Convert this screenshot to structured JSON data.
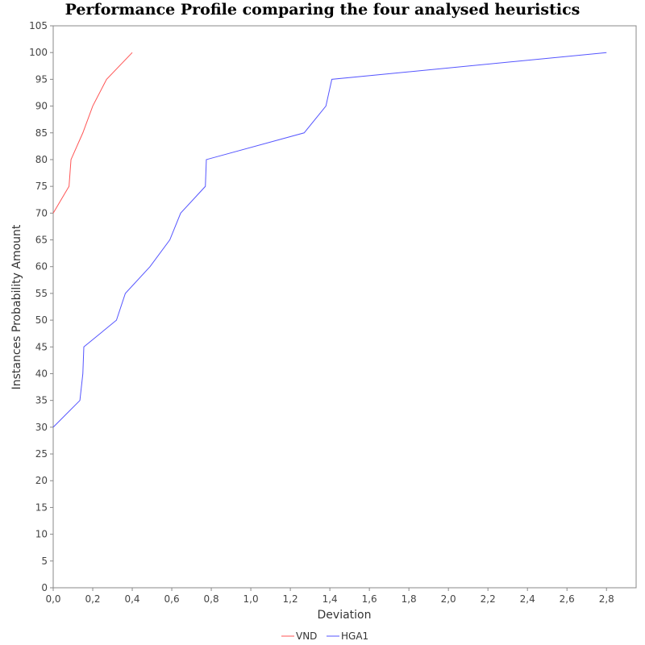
{
  "chart_data": {
    "type": "line",
    "title": "Performance Profile comparing the four analysed heuristics",
    "xlabel": "Deviation",
    "ylabel": "Instances Probability Amount",
    "xlim": [
      0.0,
      2.95
    ],
    "ylim": [
      0,
      105
    ],
    "xticks": [
      0.0,
      0.2,
      0.4,
      0.6,
      0.8,
      1.0,
      1.2,
      1.4,
      1.6,
      1.8,
      2.0,
      2.2,
      2.4,
      2.6,
      2.8
    ],
    "xtick_labels": [
      "0,0",
      "0,2",
      "0,4",
      "0,6",
      "0,8",
      "1,0",
      "1,2",
      "1,4",
      "1,6",
      "1,8",
      "2,0",
      "2,2",
      "2,4",
      "2,6",
      "2,8"
    ],
    "yticks": [
      0,
      5,
      10,
      15,
      20,
      25,
      30,
      35,
      40,
      45,
      50,
      55,
      60,
      65,
      70,
      75,
      80,
      85,
      90,
      95,
      100,
      105
    ],
    "ytick_labels": [
      "0",
      "5",
      "10",
      "15",
      "20",
      "25",
      "30",
      "35",
      "40",
      "45",
      "50",
      "55",
      "60",
      "65",
      "70",
      "75",
      "80",
      "85",
      "90",
      "95",
      "100",
      "105"
    ],
    "grid": false,
    "legend_position": "bottom-center",
    "series": [
      {
        "name": "VND",
        "color": "#ff5555",
        "x": [
          0.0,
          0.08,
          0.09,
          0.15,
          0.2,
          0.27,
          0.4
        ],
        "y": [
          70,
          75,
          80,
          85,
          90,
          95,
          100
        ]
      },
      {
        "name": "HGA1",
        "color": "#5555ff",
        "x": [
          0.0,
          0.135,
          0.15,
          0.155,
          0.32,
          0.365,
          0.49,
          0.59,
          0.645,
          0.77,
          0.775,
          1.27,
          1.38,
          1.41,
          2.8
        ],
        "y": [
          30,
          35,
          40,
          45,
          50,
          55,
          60,
          65,
          70,
          75,
          80,
          85,
          90,
          95,
          100
        ]
      }
    ]
  }
}
